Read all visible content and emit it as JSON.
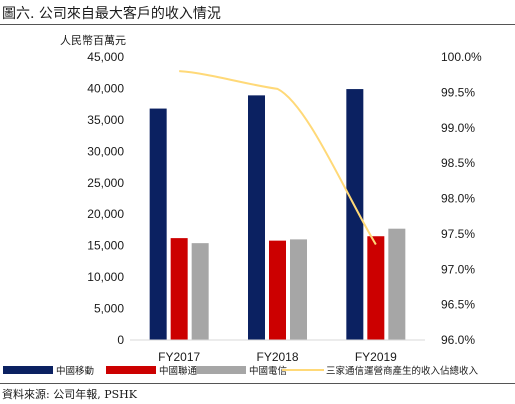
{
  "header": {
    "title": "圖六. 公司來自最大客戶的收入情況"
  },
  "footer": {
    "source": "資料來源: 公司年報, PSHK"
  },
  "chart_data": {
    "type": "bar",
    "title": "圖六. 公司來自最大客戶的收入情況",
    "left_axis_unit": "人民幣百萬元",
    "categories": [
      "FY2017",
      "FY2018",
      "FY2019"
    ],
    "y_left": {
      "range": [
        0,
        45000
      ],
      "ticks": [
        "0",
        "5,000",
        "10,000",
        "15,000",
        "20,000",
        "25,000",
        "30,000",
        "35,000",
        "40,000",
        "45,000"
      ]
    },
    "y_right": {
      "range": [
        96.0,
        100.0
      ],
      "ticks": [
        "96.0%",
        "96.5%",
        "97.0%",
        "97.5%",
        "98.0%",
        "98.5%",
        "99.0%",
        "99.5%",
        "100.0%"
      ]
    },
    "series": [
      {
        "name": "中國移動",
        "type": "bar",
        "axis": "left",
        "color": "#0b2161",
        "values": [
          36800,
          38900,
          39900
        ]
      },
      {
        "name": "中國聯通",
        "type": "bar",
        "axis": "left",
        "color": "#cc0000",
        "values": [
          16200,
          15800,
          16500
        ]
      },
      {
        "name": "中國電信",
        "type": "bar",
        "axis": "left",
        "color": "#a6a6a6",
        "values": [
          15400,
          16000,
          17700
        ]
      },
      {
        "name": "三家通信運營商產生的收入佔總收入",
        "type": "line",
        "axis": "right",
        "color": "#ffd978",
        "values": [
          99.8,
          99.55,
          97.35
        ]
      }
    ],
    "legend": "bottom",
    "grid": false
  }
}
